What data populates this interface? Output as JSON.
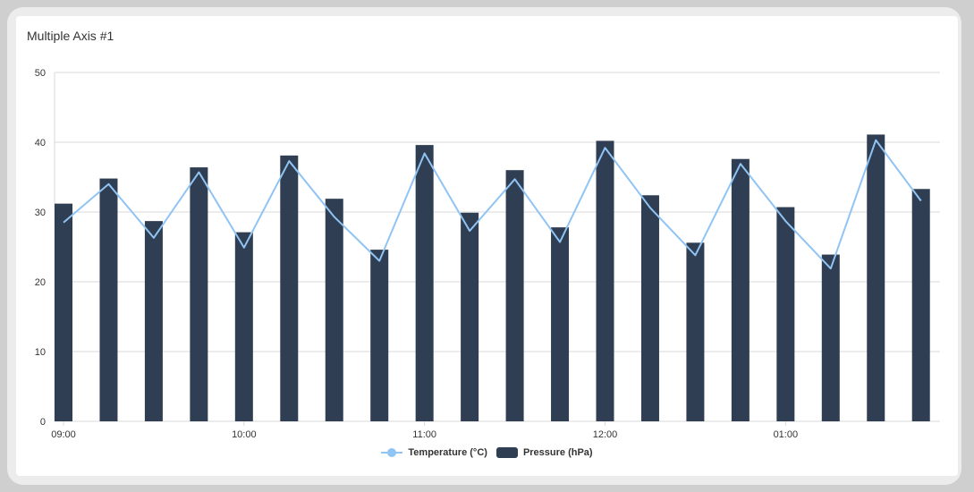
{
  "card": {
    "title": "Multiple Axis #1"
  },
  "colors": {
    "bar": "#2f3e52",
    "line": "#90c4f4",
    "grid": "#d9d9d9",
    "axis_text": "#333333"
  },
  "chart_data": {
    "type": "bar",
    "title": "Multiple Axis #1",
    "ylim": [
      0,
      50
    ],
    "yticks": [
      0,
      10,
      20,
      30,
      40,
      50
    ],
    "xtick_labels": [
      "09:00",
      "10:00",
      "11:00",
      "12:00",
      "01:00"
    ],
    "grid": true,
    "legend_position": "bottom",
    "series": [
      {
        "name": "Temperature (°C)",
        "type": "line",
        "values": [
          28.5,
          34.0,
          26.3,
          35.7,
          24.9,
          37.3,
          29.3,
          23.0,
          38.4,
          27.3,
          34.7,
          25.7,
          39.2,
          30.6,
          23.8,
          36.9,
          28.7,
          21.9,
          40.3,
          31.6
        ]
      },
      {
        "name": "Pressure (hPa)",
        "type": "bar",
        "values": [
          31.2,
          34.8,
          28.7,
          36.4,
          27.1,
          38.1,
          31.9,
          24.6,
          39.6,
          29.9,
          36.0,
          27.8,
          40.2,
          32.4,
          25.6,
          37.6,
          30.7,
          23.9,
          41.1,
          33.3
        ]
      }
    ]
  }
}
